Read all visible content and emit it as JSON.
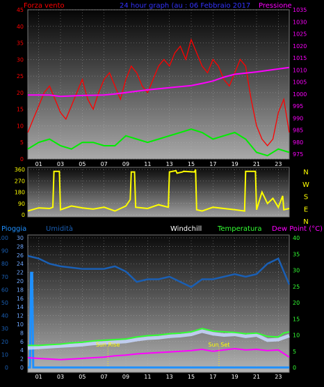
{
  "header": {
    "wind_label": "Forza vento",
    "title": "24 hour graph (au : 06 Febbraio 2017",
    "pressure_label": "Pressione"
  },
  "legend2": {
    "rain": "Pioggia",
    "humidity": "Umidità",
    "windchill": "Windchill",
    "temperature": "Temperatura",
    "dewpoint": "Dew Point (°C)"
  },
  "annotations": {
    "sunrise": "Sun Rise",
    "sunset": "Sun Set"
  },
  "colors": {
    "wind": "#ff0000",
    "gust_avg": "#00ee00",
    "pressure": "#ff00ff",
    "direction": "#ffff00",
    "humidity": "#1a5fb4",
    "rain": "#1e90ff",
    "windchill": "#c8d8ff",
    "temperature": "#33ff33",
    "dewpoint": "#ff00ff",
    "title": "#3333ff"
  },
  "chart_data": [
    {
      "type": "line",
      "panel": "wind-pressure",
      "x_ticks": [
        "01",
        "03",
        "05",
        "07",
        "09",
        "11",
        "13",
        "15",
        "17",
        "19",
        "21",
        "23"
      ],
      "y_left_ticks": [
        "0",
        "5",
        "10",
        "15",
        "20",
        "25",
        "30",
        "35",
        "40",
        "45"
      ],
      "y_left_range": [
        0,
        45
      ],
      "y_right_ticks": [
        "975",
        "980",
        "985",
        "990",
        "995",
        "1000",
        "1005",
        "1010",
        "1015",
        "1020",
        "1025",
        "1030",
        "1035"
      ],
      "y_right_range": [
        973,
        1035
      ],
      "x_range": [
        0,
        24
      ],
      "series": [
        {
          "key": "wind_max",
          "x": [
            0,
            0.5,
            1,
            1.5,
            2,
            2.5,
            3,
            3.5,
            4,
            4.5,
            5,
            5.5,
            6,
            6.5,
            7,
            7.5,
            8,
            8.5,
            9,
            9.5,
            10,
            10.5,
            11,
            11.5,
            12,
            12.5,
            13,
            13.5,
            14,
            14.5,
            15,
            15.5,
            16,
            16.5,
            17,
            17.5,
            18,
            18.5,
            19,
            19.5,
            20,
            20.5,
            21,
            21.5,
            22,
            22.5,
            23,
            23.5,
            24
          ],
          "y": [
            8,
            12,
            16,
            20,
            22,
            18,
            14,
            12,
            16,
            20,
            24,
            18,
            15,
            20,
            24,
            26,
            22,
            18,
            24,
            28,
            26,
            22,
            20,
            24,
            28,
            30,
            28,
            32,
            34,
            30,
            36,
            32,
            28,
            26,
            30,
            28,
            24,
            22,
            26,
            30,
            28,
            18,
            10,
            6,
            4,
            6,
            14,
            18,
            8
          ]
        },
        {
          "key": "wind_avg",
          "x": [
            0,
            1,
            2,
            3,
            4,
            5,
            6,
            7,
            8,
            9,
            10,
            11,
            12,
            13,
            14,
            15,
            16,
            17,
            18,
            19,
            20,
            21,
            22,
            23,
            24
          ],
          "y": [
            3,
            5,
            6,
            4,
            3,
            5,
            5,
            4,
            4,
            7,
            6,
            5,
            6,
            7,
            8,
            9,
            8,
            6,
            7,
            8,
            6,
            2,
            1,
            3,
            2
          ]
        },
        {
          "key": "pressure",
          "x": [
            0,
            2,
            3,
            5,
            7,
            8,
            9,
            11,
            13,
            15,
            16,
            17,
            18,
            19,
            21,
            23,
            24
          ],
          "y": [
            999.6,
            999.6,
            999.0,
            999.4,
            999.6,
            1000.0,
            1000.6,
            1001.7,
            1002.6,
            1003.5,
            1004.4,
            1005.4,
            1007.0,
            1008.2,
            1009.2,
            1010.4,
            1011.0
          ]
        }
      ]
    },
    {
      "type": "line",
      "panel": "wind-direction",
      "y_left_ticks": [
        "0",
        "90",
        "180",
        "270",
        "360"
      ],
      "y_range": [
        0,
        360
      ],
      "y_right_labels": [
        "N",
        "W",
        "S",
        "E",
        "N"
      ],
      "x_range": [
        0,
        24
      ],
      "series": [
        {
          "key": "direction",
          "x": [
            0,
            1,
            2,
            2.3,
            2.4,
            2.9,
            3,
            4,
            5,
            6,
            7,
            8,
            9,
            9.4,
            9.5,
            9.8,
            9.9,
            11,
            12,
            12.9,
            13,
            13.6,
            13.7,
            14.2,
            14.3,
            15.3,
            15.4,
            15.5,
            16,
            17,
            18,
            19,
            19.9,
            20,
            20.9,
            21,
            21.5,
            22,
            22.5,
            23,
            23.4,
            23.5,
            24
          ],
          "y": [
            30,
            55,
            50,
            60,
            345,
            345,
            40,
            70,
            55,
            45,
            60,
            30,
            70,
            120,
            340,
            340,
            60,
            50,
            80,
            60,
            340,
            350,
            330,
            340,
            345,
            340,
            360,
            40,
            30,
            60,
            50,
            40,
            30,
            345,
            345,
            40,
            180,
            90,
            130,
            60,
            150,
            40,
            50
          ]
        }
      ]
    },
    {
      "type": "line",
      "panel": "humidity-temperature",
      "x_ticks": [
        "01",
        "03",
        "05",
        "07",
        "09",
        "11",
        "13",
        "15",
        "17",
        "19",
        "21",
        "23"
      ],
      "x_range": [
        0,
        24
      ],
      "y_left_outer_ticks": [
        "0",
        "10",
        "20",
        "30",
        "40",
        "50",
        "60",
        "70",
        "80",
        "90",
        "100"
      ],
      "y_left_outer_range": [
        0,
        100
      ],
      "y_left_inner_ticks": [
        "0",
        "2",
        "4",
        "6",
        "8",
        "10",
        "12",
        "14",
        "16",
        "18",
        "20",
        "22",
        "24",
        "26",
        "28",
        "30"
      ],
      "y_left_inner_range": [
        0,
        30
      ],
      "y_right_ticks": [
        "0",
        "5",
        "10",
        "15",
        "20",
        "25",
        "30",
        "35",
        "40"
      ],
      "y_right_range": [
        0,
        40
      ],
      "series": [
        {
          "key": "humidity",
          "x": [
            0,
            1,
            2,
            3,
            4,
            5,
            6,
            7,
            8,
            9,
            10,
            11,
            12,
            13,
            14,
            15,
            16,
            17,
            18,
            19,
            20,
            21,
            22,
            23,
            24
          ],
          "y": [
            86,
            84,
            80,
            78,
            77,
            76,
            76,
            76,
            78,
            74,
            66,
            68,
            68,
            70,
            66,
            62,
            68,
            68,
            70,
            72,
            70,
            72,
            80,
            84,
            64
          ]
        },
        {
          "key": "rain",
          "x": [
            0,
            0.2,
            0.3,
            0.4,
            0.5,
            1,
            24
          ],
          "y": [
            0,
            0,
            73,
            73,
            0,
            0,
            0
          ]
        },
        {
          "key": "temperature",
          "x": [
            0,
            1,
            2,
            3,
            4,
            5,
            6,
            7,
            8,
            9,
            10,
            11,
            12,
            13,
            14,
            15,
            16,
            17,
            18,
            19,
            20,
            21,
            22,
            23,
            23.5,
            24
          ],
          "y": [
            6.8,
            6.8,
            7.0,
            7.2,
            7.6,
            7.8,
            8.2,
            8.4,
            8.6,
            8.8,
            9.4,
            9.8,
            10.0,
            10.4,
            10.6,
            11.0,
            12.0,
            11.2,
            11.0,
            10.8,
            10.4,
            10.6,
            9.6,
            9.4,
            10.6,
            11.0
          ]
        },
        {
          "key": "windchill",
          "x": [
            0,
            1,
            2,
            3,
            4,
            5,
            6,
            7,
            8,
            9,
            10,
            11,
            12,
            13,
            14,
            15,
            16,
            17,
            18,
            19,
            20,
            21,
            22,
            23,
            24
          ],
          "y": [
            6.0,
            6.2,
            6.4,
            6.6,
            6.8,
            7.0,
            7.4,
            7.6,
            7.8,
            8.0,
            8.6,
            9.0,
            9.2,
            9.6,
            9.8,
            10.2,
            11.2,
            10.4,
            10.0,
            10.2,
            9.6,
            10.0,
            8.4,
            8.6,
            9.8
          ]
        },
        {
          "key": "dewpoint",
          "x": [
            0,
            1,
            2,
            3,
            4,
            5,
            6,
            7,
            8,
            9,
            10,
            11,
            12,
            13,
            14,
            15,
            16,
            17,
            18,
            19,
            20,
            21,
            22,
            23,
            24
          ],
          "y": [
            3.0,
            2.8,
            2.6,
            2.4,
            2.6,
            2.8,
            3.0,
            3.2,
            3.6,
            3.8,
            4.2,
            4.4,
            4.6,
            4.8,
            5.0,
            5.2,
            5.6,
            5.0,
            5.4,
            5.8,
            5.4,
            5.6,
            5.2,
            5.4,
            3.2
          ]
        }
      ],
      "events": [
        {
          "name": "sunrise",
          "x": 7.35
        },
        {
          "name": "sunset",
          "x": 17.55
        }
      ]
    }
  ]
}
